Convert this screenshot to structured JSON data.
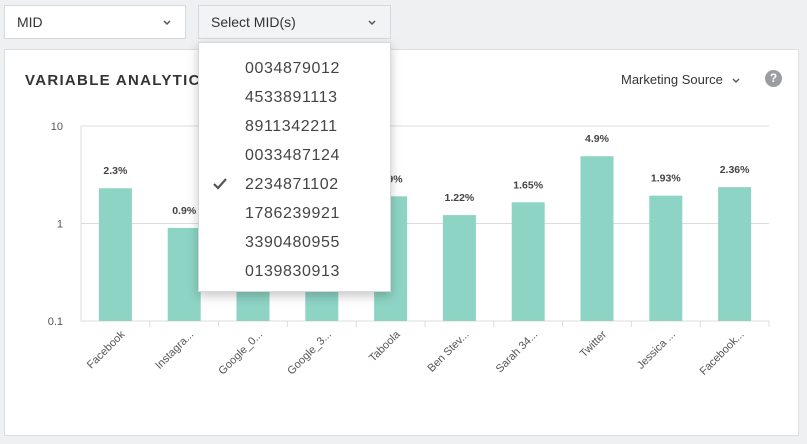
{
  "filters": {
    "mid_label": "MID",
    "mids_label": "Select MID(s)",
    "options": [
      {
        "label": "0034879012",
        "checked": false
      },
      {
        "label": "4533891113",
        "checked": false
      },
      {
        "label": "8911342211",
        "checked": false
      },
      {
        "label": "0033487124",
        "checked": false
      },
      {
        "label": "2234871102",
        "checked": true
      },
      {
        "label": "1786239921",
        "checked": false
      },
      {
        "label": "3390480955",
        "checked": false
      },
      {
        "label": "0139830913",
        "checked": false
      }
    ]
  },
  "card": {
    "title": "VARIABLE ANALYTICS",
    "source_label": "Marketing Source",
    "help_label": "?"
  },
  "colors": {
    "bar": "#8dd4c4",
    "grid": "#dcdcdc"
  },
  "icons": {
    "check": "check-icon",
    "dropdown": "chevron-down-icon",
    "help": "help-icon"
  },
  "chart_data": {
    "type": "bar",
    "scale": "log",
    "ylim": [
      0.1,
      10
    ],
    "yticks": [
      "10",
      "1",
      "0.1"
    ],
    "categories": [
      "Facebook",
      "Instagra...",
      "Google_0...",
      "Google_3...",
      "Taboola",
      "Ben Stev...",
      "Sarah 34...",
      "Twitter",
      "Jessica ...",
      "Facebook..."
    ],
    "values": [
      2.3,
      0.9,
      0.3,
      0.4,
      1.9,
      1.22,
      1.65,
      4.9,
      1.93,
      2.36
    ],
    "labels": [
      "2.3%",
      "0.9%",
      "",
      "",
      "1.9%",
      "1.22%",
      "1.65%",
      "4.9%",
      "1.93%",
      "2.36%"
    ],
    "grid": true
  }
}
